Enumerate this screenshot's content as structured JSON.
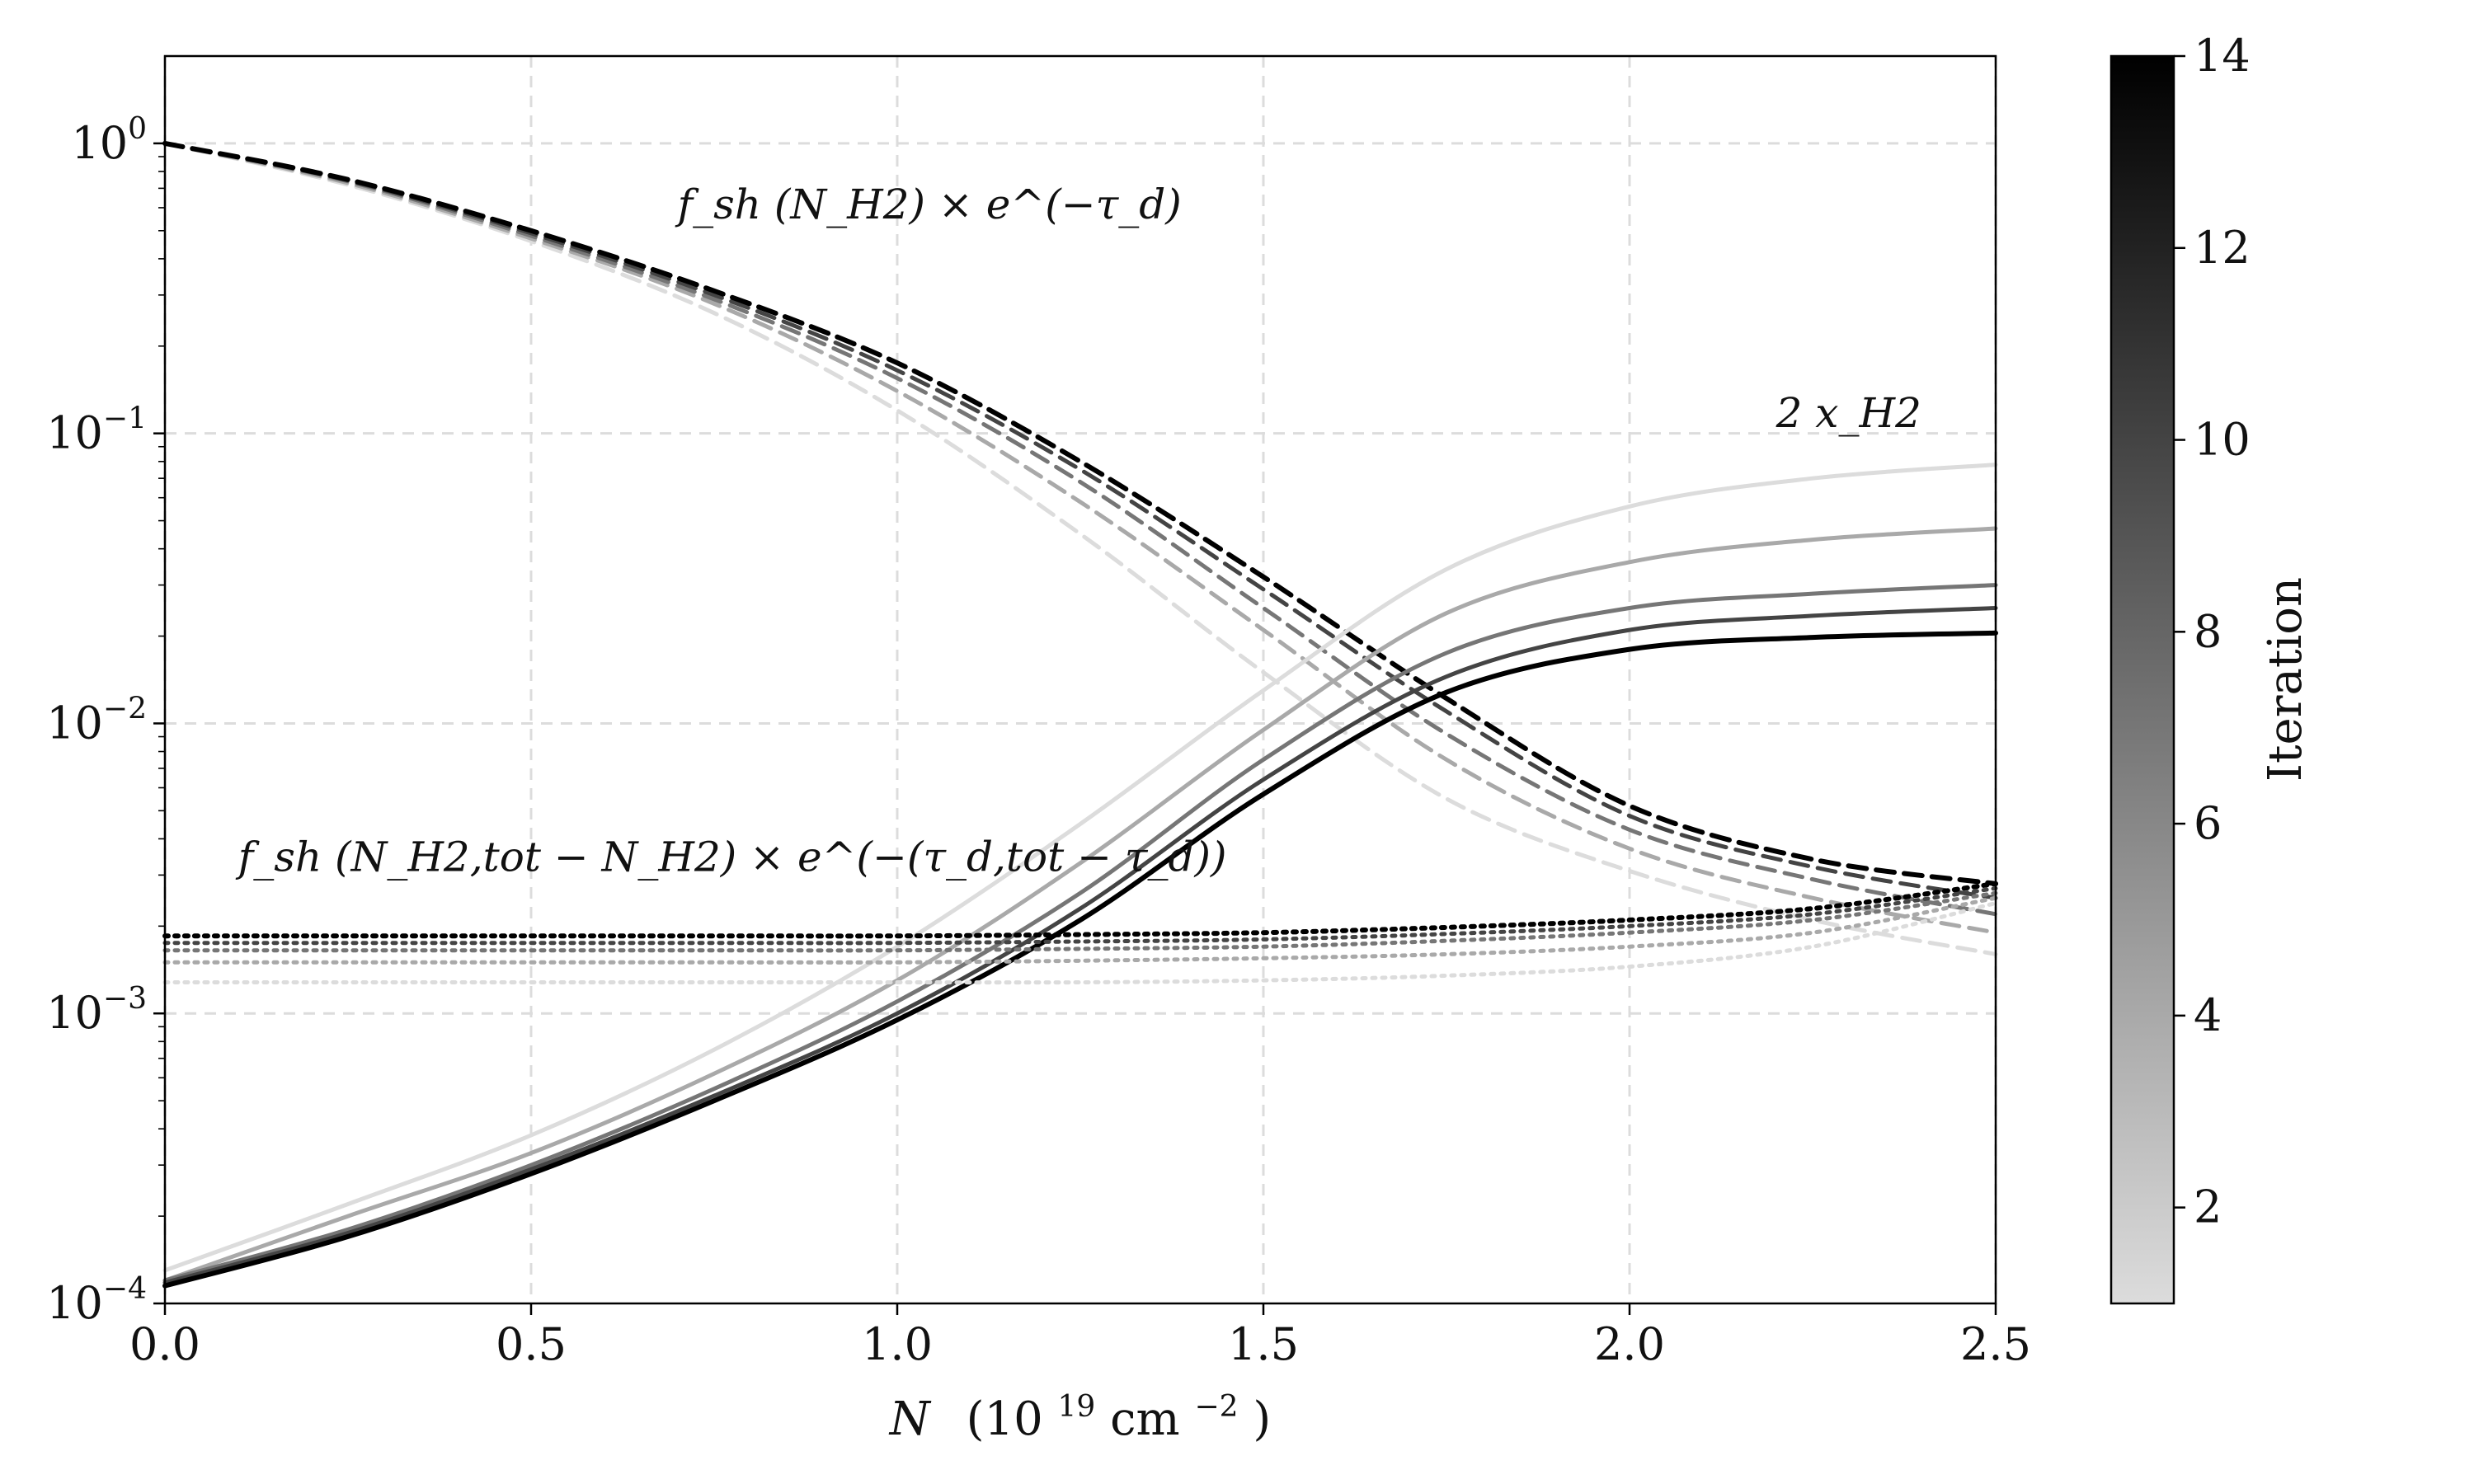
{
  "chart_data": {
    "type": "line",
    "title": "",
    "xlabel": "N",
    "xlabel_units": "(10",
    "xlabel_exp": "19",
    "xlabel_unit_tail": " cm",
    "xlabel_unit_exp": "−2",
    "xlabel_close": ")",
    "xlim": [
      0.0,
      2.5
    ],
    "yscale": "log",
    "ylim": [
      0.0001,
      2.0
    ],
    "grid": true,
    "grid_style": "dashed",
    "x_ticks": [
      {
        "value": 0.0,
        "label": "0.0"
      },
      {
        "value": 0.5,
        "label": "0.5"
      },
      {
        "value": 1.0,
        "label": "1.0"
      },
      {
        "value": 1.5,
        "label": "1.5"
      },
      {
        "value": 2.0,
        "label": "2.0"
      },
      {
        "value": 2.5,
        "label": "2.5"
      }
    ],
    "y_ticks": [
      {
        "value": 1,
        "base": "10",
        "exp": "0"
      },
      {
        "value": 0.1,
        "base": "10",
        "exp": "−1"
      },
      {
        "value": 0.01,
        "base": "10",
        "exp": "−2"
      },
      {
        "value": 0.001,
        "base": "10",
        "exp": "−3"
      },
      {
        "value": 0.0001,
        "base": "10",
        "exp": "−4"
      }
    ],
    "annotations": [
      {
        "name": "annotation-shielding-front",
        "text": "f_sh (N_H2) × e^(−τ_d)",
        "x": 0.7,
        "y": 0.55
      },
      {
        "name": "annotation-h2-fraction",
        "text": "2 x_H2",
        "x": 2.2,
        "y": 0.105
      },
      {
        "name": "annotation-shielding-back",
        "text": "f_sh (N_H2,tot − N_H2) × e^(−(τ_d,tot − τ_d))",
        "x": 0.1,
        "y": 0.0031
      }
    ],
    "colorbar": {
      "label": "Iteration",
      "range": [
        1,
        14
      ],
      "color_min": "#dcdcdc",
      "color_max": "#000000",
      "ticks": [
        2,
        4,
        6,
        8,
        10,
        12,
        14
      ]
    },
    "x": [
      0.0,
      0.25,
      0.5,
      0.75,
      1.0,
      1.25,
      1.5,
      1.75,
      2.0,
      2.25,
      2.5
    ],
    "series_groups": [
      {
        "name": "f_sh(N_H2) × e^(−τ_d)",
        "style": "dashed",
        "series": [
          {
            "iteration": 1,
            "values": [
              1.0,
              0.72,
              0.46,
              0.26,
              0.12,
              0.045,
              0.015,
              0.0055,
              0.0031,
              0.0021,
              0.0016
            ]
          },
          {
            "iteration": 4,
            "values": [
              1.0,
              0.73,
              0.47,
              0.28,
              0.14,
              0.058,
              0.021,
              0.0075,
              0.0037,
              0.0025,
              0.0019
            ]
          },
          {
            "iteration": 7,
            "values": [
              1.0,
              0.74,
              0.48,
              0.29,
              0.155,
              0.068,
              0.025,
              0.0092,
              0.0043,
              0.0029,
              0.0022
            ]
          },
          {
            "iteration": 10,
            "values": [
              1.0,
              0.745,
              0.49,
              0.3,
              0.165,
              0.075,
              0.029,
              0.011,
              0.0048,
              0.0032,
              0.0025
            ]
          },
          {
            "iteration": 14,
            "values": [
              1.0,
              0.75,
              0.5,
              0.31,
              0.175,
              0.08,
              0.032,
              0.0122,
              0.0052,
              0.0034,
              0.0028
            ]
          }
        ]
      },
      {
        "name": "2 x_H2",
        "style": "solid",
        "series": [
          {
            "iteration": 1,
            "values": [
              0.00013,
              0.00022,
              0.00038,
              0.00075,
              0.0017,
              0.0045,
              0.013,
              0.034,
              0.056,
              0.07,
              0.078
            ]
          },
          {
            "iteration": 4,
            "values": [
              0.00012,
              0.0002,
              0.00033,
              0.00062,
              0.0013,
              0.0033,
              0.0095,
              0.024,
              0.036,
              0.043,
              0.047
            ]
          },
          {
            "iteration": 7,
            "values": [
              0.00012,
              0.00018,
              0.0003,
              0.00055,
              0.0011,
              0.0026,
              0.0075,
              0.0175,
              0.025,
              0.028,
              0.03
            ]
          },
          {
            "iteration": 10,
            "values": [
              0.000118,
              0.000175,
              0.00029,
              0.00052,
              0.001,
              0.0023,
              0.0064,
              0.0145,
              0.021,
              0.0235,
              0.025
            ]
          },
          {
            "iteration": 14,
            "values": [
              0.000115,
              0.00017,
              0.00028,
              0.0005,
              0.00095,
              0.0021,
              0.0057,
              0.0128,
              0.018,
              0.0198,
              0.0205
            ]
          }
        ]
      },
      {
        "name": "f_sh(N_H2,tot − N_H2) × e^(−(τ_d,tot − τ_d))",
        "style": "dotted",
        "series": [
          {
            "iteration": 1,
            "values": [
              0.00128,
              0.00128,
              0.00128,
              0.00128,
              0.00128,
              0.00128,
              0.0013,
              0.00135,
              0.00145,
              0.0017,
              0.0024
            ]
          },
          {
            "iteration": 4,
            "values": [
              0.0015,
              0.0015,
              0.0015,
              0.0015,
              0.0015,
              0.00152,
              0.00155,
              0.0016,
              0.0017,
              0.0019,
              0.0025
            ]
          },
          {
            "iteration": 7,
            "values": [
              0.00165,
              0.00165,
              0.00165,
              0.00165,
              0.00165,
              0.00167,
              0.0017,
              0.00178,
              0.0019,
              0.0021,
              0.0026
            ]
          },
          {
            "iteration": 10,
            "values": [
              0.00175,
              0.00175,
              0.00175,
              0.00175,
              0.00175,
              0.00177,
              0.0018,
              0.00188,
              0.002,
              0.0022,
              0.0027
            ]
          },
          {
            "iteration": 14,
            "values": [
              0.00185,
              0.00185,
              0.00185,
              0.00185,
              0.00185,
              0.00187,
              0.0019,
              0.00198,
              0.0021,
              0.0023,
              0.0028
            ]
          }
        ]
      }
    ]
  }
}
